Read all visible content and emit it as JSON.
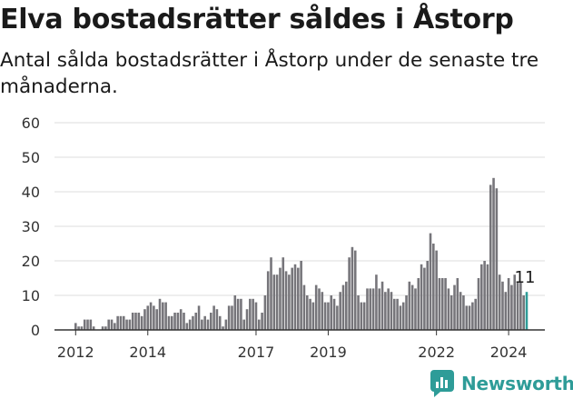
{
  "header": {
    "title": "Elva bostadsrätter såldes i Åstorp",
    "subtitle": "Antal sålda bostadsrätter i Åstorp under de senaste tre månaderna."
  },
  "brand": {
    "name": "Newsworthy",
    "color": "#2e9c98",
    "icon": "newsworthy-logo-icon"
  },
  "chart_data": {
    "type": "bar",
    "title": "Elva bostadsrätter såldes i Åstorp",
    "subtitle": "Antal sålda bostadsrätter i Åstorp under de senaste tre månaderna.",
    "xlabel": "",
    "ylabel": "",
    "ylim": [
      0,
      60
    ],
    "yticks": [
      0,
      10,
      20,
      30,
      40,
      50,
      60
    ],
    "xticks": [
      "2012",
      "2014",
      "2017",
      "2019",
      "2022",
      "2024"
    ],
    "grid": true,
    "legend": "none",
    "bar_color": "#76757a",
    "highlight_color": "#2e9c98",
    "highlight_label": "11",
    "highlight_value": 11,
    "period": "three-month rolling, monthly bars",
    "start": "2012-01",
    "values": [
      2,
      1,
      1,
      3,
      3,
      3,
      1,
      0,
      0,
      1,
      1,
      3,
      3,
      2,
      4,
      4,
      4,
      3,
      3,
      5,
      5,
      5,
      4,
      6,
      7,
      8,
      7,
      6,
      9,
      8,
      8,
      4,
      4,
      5,
      5,
      6,
      5,
      2,
      3,
      4,
      5,
      7,
      3,
      4,
      3,
      5,
      7,
      6,
      4,
      1,
      3,
      7,
      7,
      10,
      9,
      9,
      3,
      6,
      9,
      9,
      8,
      3,
      5,
      10,
      17,
      21,
      16,
      16,
      18,
      21,
      17,
      16,
      18,
      19,
      18,
      20,
      13,
      10,
      9,
      8,
      13,
      12,
      11,
      8,
      8,
      10,
      9,
      7,
      11,
      13,
      14,
      21,
      24,
      23,
      10,
      8,
      8,
      12,
      12,
      12,
      16,
      12,
      14,
      11,
      12,
      11,
      9,
      9,
      7,
      8,
      10,
      14,
      13,
      12,
      15,
      19,
      18,
      20,
      28,
      25,
      23,
      15,
      15,
      15,
      12,
      10,
      13,
      15,
      11,
      10,
      7,
      7,
      8,
      9,
      15,
      19,
      20,
      19,
      42,
      44,
      41,
      16,
      14,
      11,
      15,
      13,
      16,
      14,
      14,
      10,
      11
    ]
  }
}
